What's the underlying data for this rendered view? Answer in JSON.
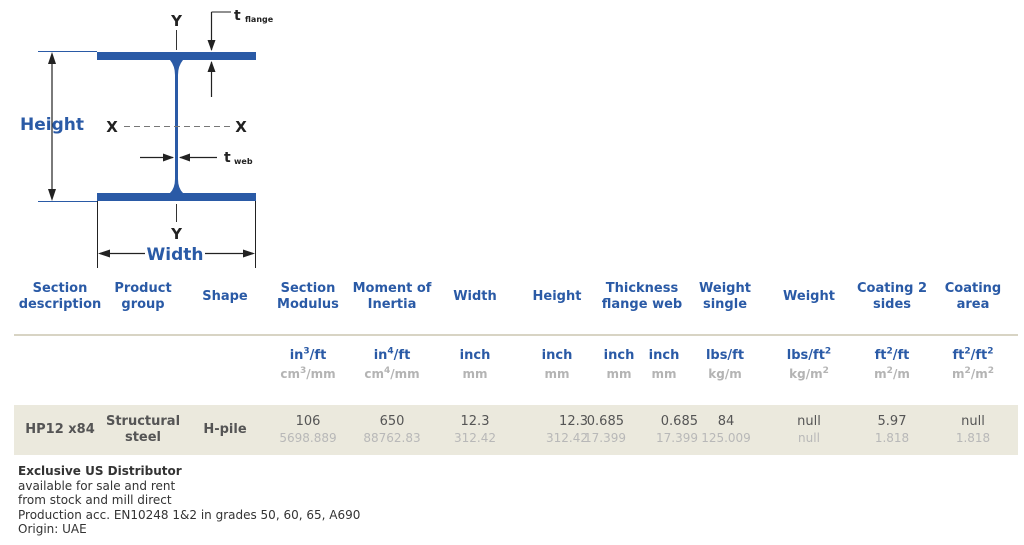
{
  "diagram": {
    "label_height": "Height",
    "label_width": "Width",
    "label_y_top": "Y",
    "label_y_bottom": "Y",
    "label_x_left": "X",
    "label_x_right": "X",
    "label_t": "t",
    "label_flange": "flange",
    "label_web": "web",
    "color_profile": "#2a5aa6"
  },
  "table": {
    "headers": [
      "Section description",
      "Product group",
      "Shape",
      "Section Modulus",
      "Moment of Inertia",
      "Width",
      "Height",
      "Thickness flange web",
      "Weight single",
      "Weight",
      "Coating 2 sides",
      "Coating area"
    ],
    "units_imperial": [
      "in3/ft",
      "in4/ft",
      "inch",
      "inch",
      "inch",
      "inch",
      "lbs/ft",
      "lbs/ft2",
      "ft2/ft",
      "ft2/ft2"
    ],
    "units_metric": [
      "cm3/mm",
      "cm4/mm",
      "mm",
      "mm",
      "mm",
      "mm",
      "kg/m",
      "kg/m2",
      "m2/m",
      "m2/m2"
    ],
    "row": {
      "section": "HP12 x84",
      "product_group": "Structural steel",
      "shape": "H-pile",
      "section_modulus": "106",
      "section_modulus_metric": "5698.889",
      "moment_of_inertia": "650",
      "moment_of_inertia_metric": "88762.83",
      "width": "12.3",
      "width_metric": "312.42",
      "height": "12.3",
      "height_metric": "312.42",
      "flange": "0.685",
      "flange_metric": "17.399",
      "web": "0.685",
      "web_metric": "17.399",
      "weight_single": "84",
      "weight_single_metric": "125.009",
      "weight": "null",
      "weight_metric": "null",
      "coating_2_sides": "5.97",
      "coating_2_sides_metric": "1.818",
      "coating_area": "null",
      "coating_area_metric": "1.818"
    }
  },
  "footer": {
    "title": "Exclusive US Distributor",
    "lines": [
      "available for sale and rent",
      "from stock and mill direct",
      "Production acc. EN10248 1&2 in grades 50, 60, 65, A690",
      "Origin: UAE"
    ]
  }
}
